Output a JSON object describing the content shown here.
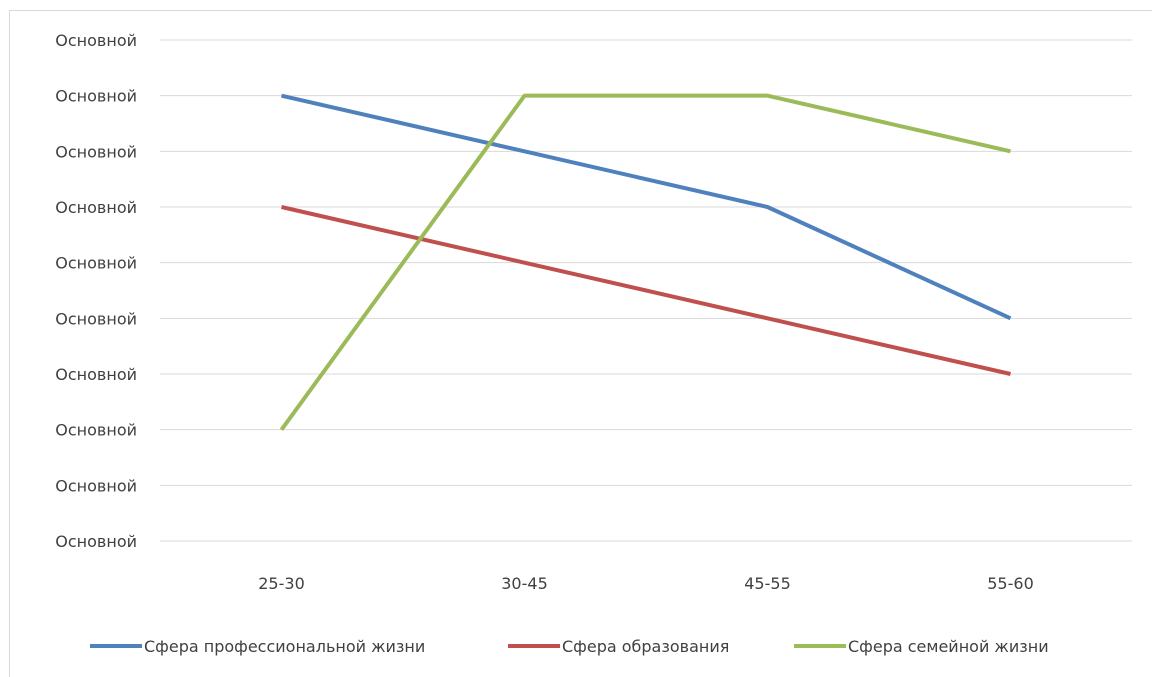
{
  "chart_data": {
    "type": "line",
    "categories": [
      "25-30",
      "30-45",
      "45-55",
      "55-60"
    ],
    "y_tick_labels": [
      "Основной",
      "Основной",
      "Основной",
      "Основной",
      "Основной",
      "Основной",
      "Основной",
      "Основной",
      "Основной",
      "Основной"
    ],
    "ylim": [
      0,
      9
    ],
    "grid": true,
    "legend_position": "bottom",
    "series": [
      {
        "name": "Сфера профессиональной жизни",
        "color": "#4f81bd",
        "values": [
          8,
          7,
          6,
          4
        ]
      },
      {
        "name": "Сфера образования",
        "color": "#c0504d",
        "values": [
          6,
          5,
          4,
          3
        ]
      },
      {
        "name": "Сфера семейной жизни",
        "color": "#9bbb59",
        "values": [
          2,
          8,
          8,
          7
        ]
      }
    ]
  }
}
